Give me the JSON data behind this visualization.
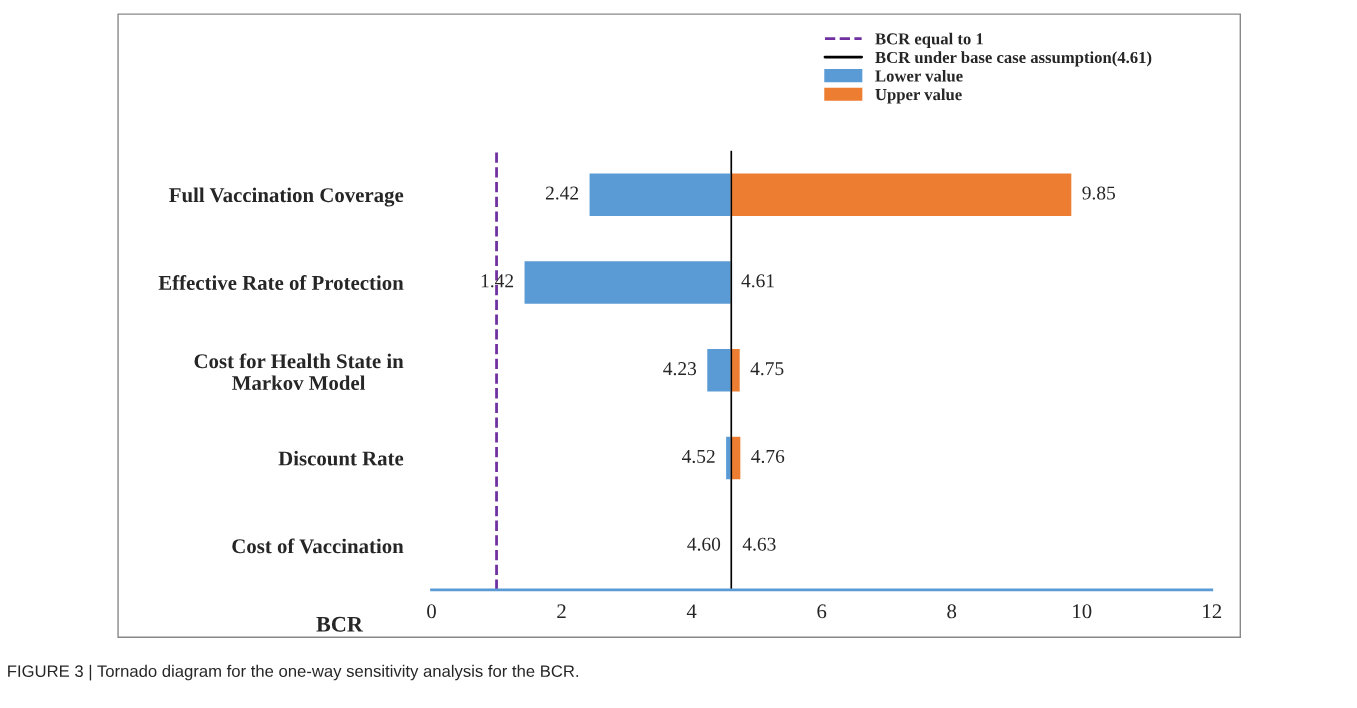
{
  "chart_data": {
    "type": "bar",
    "orientation": "horizontal",
    "xlabel": "BCR",
    "categories": [
      "Full Vaccination Coverage",
      "Effective Rate of Protection",
      "Cost for Health State in\nMarkov Model",
      "Discount Rate",
      "Cost of Vaccination"
    ],
    "series": [
      {
        "name": "Lower value",
        "color": "#5b9bd5",
        "base": [
          2.42,
          1.42,
          4.23,
          4.52,
          4.6
        ],
        "values": [
          2.19,
          3.19,
          0.38,
          0.09,
          0.01
        ]
      },
      {
        "name": "Upper value",
        "color": "#ed7d31",
        "base": [
          4.61,
          null,
          4.61,
          4.61,
          4.61
        ],
        "values": [
          5.24,
          null,
          0.14,
          0.15,
          0.02
        ]
      }
    ],
    "ref_lines": [
      {
        "axis": "x",
        "value": 1,
        "label": "BCR equal to 1",
        "color": "#7030a0",
        "line_style": "dashed"
      },
      {
        "axis": "x",
        "value": 4.61,
        "label": "BCR under base case assumption(4.61)",
        "color": "#000000",
        "line_style": "solid"
      }
    ],
    "xlim": [
      0,
      12
    ],
    "xticks": [
      0,
      2,
      4,
      6,
      8,
      10,
      12
    ],
    "grid": false,
    "legend": "top right",
    "annotations": [
      {
        "text": "2.42",
        "x": 2.42,
        "y": "Full Vaccination Coverage"
      },
      {
        "text": "1.42",
        "x": 1.42,
        "y": "Effective Rate of Protection"
      },
      {
        "text": "4.23",
        "x": 4.23,
        "y": "Cost for Health State in\nMarkov Model"
      },
      {
        "text": "4.52",
        "x": 4.52,
        "y": "Discount Rate"
      },
      {
        "text": "4.60",
        "x": 4.6,
        "y": "Cost of Vaccination"
      },
      {
        "text": "9.85",
        "x": 9.85,
        "y": "Full Vaccination Coverage"
      },
      {
        "text": "4.61",
        "x": 4.61,
        "y": "Effective Rate of Protection"
      },
      {
        "text": "4.75",
        "x": 4.75,
        "y": "Cost for Health State in\nMarkov Model"
      },
      {
        "text": "4.76",
        "x": 4.76,
        "y": "Discount Rate"
      },
      {
        "text": "4.63",
        "x": 4.63,
        "y": "Cost of Vaccination"
      },
      "FIGURE 3 | Tornado diagram for the one-way sensitivity analysis for the BCR."
    ]
  }
}
